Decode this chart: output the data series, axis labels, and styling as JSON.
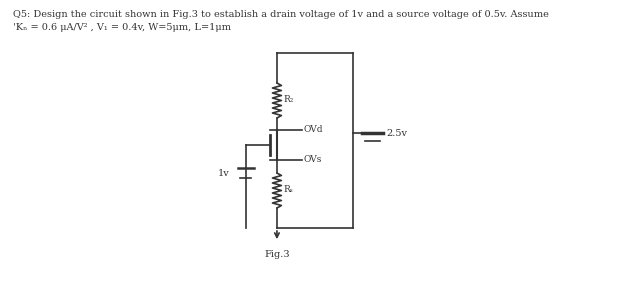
{
  "title_line1": "Q5: Design the circuit shown in Fig.3 to establish a drain voltage of 1v and a source voltage of 0.5v. Assume",
  "title_line2": "'Kₙ = 0.6 μA/V² , V₁ = 0.4v, W=5μm, L=1μm",
  "fig_label": "Fig.3",
  "vdd_label": "2.5v",
  "vg_label": "1v",
  "vd_label": "OVd",
  "vs_label": "OVs",
  "rd_label": "R₂",
  "rs_label": "Rₛ",
  "bg_color": "#ffffff",
  "line_color": "#333333",
  "text_color": "#333333",
  "font_size": 7.0
}
